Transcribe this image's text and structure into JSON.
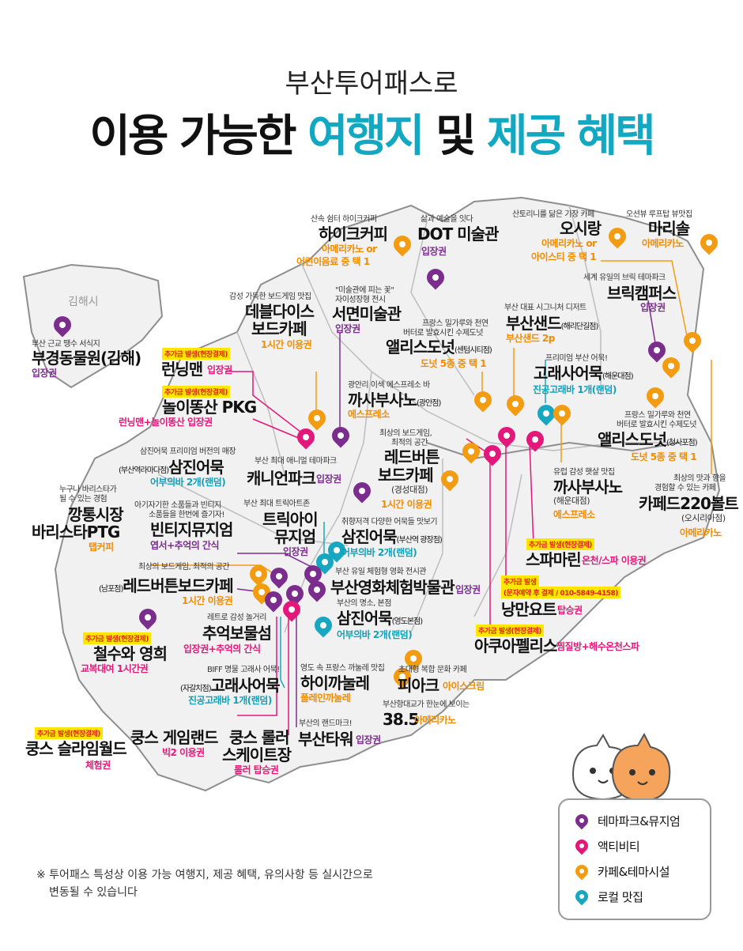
{
  "header": {
    "line1": "부산투어패스로",
    "line2_a": "이용 가능한 ",
    "line2_b": "여행지",
    "line2_c": " 및 ",
    "line2_d": "제공 혜택"
  },
  "colors": {
    "theme_park": "#7b2d8e",
    "activity": "#e3187a",
    "cafe": "#f39c12",
    "local": "#17a7c0"
  },
  "region": "김해시",
  "legend": [
    {
      "icon": "purple-pin-icon",
      "label": "테마파크&뮤지엄"
    },
    {
      "icon": "pink-pin-icon",
      "label": "액티비티"
    },
    {
      "icon": "orange-pin-icon",
      "label": "카페&테마시설"
    },
    {
      "icon": "teal-pin-icon",
      "label": "로컬 맛집"
    }
  ],
  "footnote_1": "※ 투어패스 특성상 이용 가능 여행지, 제공 혜택, 유의사항 등 실시간으로",
  "footnote_2": "변동될 수 있습니다",
  "places": {
    "hike": {
      "sub": "산속 쉼터 하이크커피",
      "name": "하이크커피",
      "b1": "아메리카노 or",
      "b2": "어린이음료 중 택 1"
    },
    "dot": {
      "sub": "삶과 예술을 잇다",
      "name": "DOT 미술관",
      "b1": "입장권"
    },
    "osirang": {
      "sub": "산토리니를 닮은 기장 카페",
      "name": "오시랑",
      "b1": "아메리카노 or",
      "b2": "아이스티 중 택 1"
    },
    "marisol": {
      "sub": "오션뷰 루프탑 뷰맛집",
      "name": "마리솔",
      "b1": "아메리카노"
    },
    "brick": {
      "sub": "세계 유일의 브릭 테마파크",
      "name": "브릭캠퍼스",
      "b1": "입장권"
    },
    "busansand": {
      "sub": "부산 대표 시그니처 디저트",
      "name": "부산샌드",
      "name_small": "(해리단길점)",
      "b1": "부산샌드 2p"
    },
    "gimhae": {
      "sub": "부산 근교 땡수 서식지",
      "name": "부경동물원(김해)",
      "b1": "입장권"
    },
    "dedle": {
      "sub": "감성 가득한 보드게임 맛집",
      "name1": "데블다이스",
      "name2": "보드카페",
      "b1": "1시간 이용권"
    },
    "seomyeon": {
      "sub1": "\"미술관에 피는 꽃\"",
      "sub2": "자이성장형 전시",
      "name": "서면미술관",
      "b1": "입장권"
    },
    "alice1": {
      "sub1": "프랑스 밀가루와 천연",
      "sub2": "버터로 발효시킨 수제도넛",
      "name": "앨리스도넛",
      "name_small": "(센텀시티점)",
      "b1": "도넛 5종 중 택 1"
    },
    "goraesa1": {
      "sub": "프리미엄 부산 어묵!",
      "name": "고래사어묵",
      "name_small": "(해운대점)",
      "b1": "진공고래바 1개(랜덤)"
    },
    "runningman": {
      "tag": "추가금 발생(현장결제)",
      "name": "런닝맨",
      "b1": "입장권"
    },
    "nolttong": {
      "tag": "추가금 발생(현장결제)",
      "name": "놀이똥산 PKG",
      "b1": "런닝맨+놀이똥산 입장권"
    },
    "kkasa1": {
      "sub": "광안리 이색 에스프레소 바",
      "name": "까사부사노",
      "name_small": "(광안점)",
      "b1": "에스프레소"
    },
    "alice2": {
      "sub1": "프랑스 밀가루와 천연",
      "sub2": "버터로 발효시킨 수제도넛",
      "name": "앨리스도넛",
      "name_small": "(청사포점)",
      "b1": "도넛 5종 중 택 1"
    },
    "redbutton1": {
      "sub1": "최상의 보드게임,",
      "sub2": "최적의 공간",
      "name1": "레드버튼",
      "name2": "보드카페",
      "name_small": "(경성대점)",
      "b1": "1시간 이용권"
    },
    "samjin1": {
      "sub": "삼진어묵 프리미엄 버전의 매장",
      "name_small": "(부산역라마다점)",
      "name": "삼진어묵",
      "b1": "어부의바 2개(랜덤)"
    },
    "canyon": {
      "sub": "부산 최대 애니멀 테마파크",
      "name": "캐니언파크",
      "b1": "입장권"
    },
    "kkasa2": {
      "sub": "유럽 감성 햇살 맛집",
      "name": "까사부사노",
      "name_small": "(해운대점)",
      "b1": "에스프레소"
    },
    "cafe220": {
      "sub1": "최상의 맛과 향을",
      "sub2": "경험할 수 있는 카페",
      "name": "카페드220볼트",
      "name_small": "(오시리아점)",
      "b1": "아메리카노"
    },
    "kkangtong": {
      "sub1": "누구나 바리스타가",
      "sub2": "될 수 있는 경험",
      "name1": "깡통시장",
      "name2": "바리스타PTG",
      "b1": "탭커피"
    },
    "vintage": {
      "sub1": "아기자기한 소품들과 빈티지",
      "sub2": "소품들을 한번에 즐기자!",
      "name": "빈티지뮤지엄",
      "b1": "엽서+추억의 간식"
    },
    "trick": {
      "sub": "부산 최대 트릭아트존",
      "name1": "트릭아이",
      "name2": "뮤지엄",
      "b1": "입장권"
    },
    "samjin2": {
      "sub": "취향저격 다양한 어묵들 맛보기",
      "name": "삼진어묵",
      "name_small": "(부산역 광장점)",
      "b1": "어부의바 2개(랜덤)"
    },
    "spamarine": {
      "tag": "추가금 발생(현장결제)",
      "name": "스파마린",
      "b1": "온천/스파 이용권"
    },
    "redbutton2": {
      "sub": "최상의 보드게임, 최적의 공간",
      "name_small": "(남포점)",
      "name": "레드버튼보드카페",
      "b1": "1시간 이용권"
    },
    "movie": {
      "sub": "부산 유일 체험형 영화 전시관",
      "name": "부산영화체험박물관",
      "b1": "입장권"
    },
    "yacht": {
      "tag": "추가금 발생",
      "tag2": "(문자예약 후 결제 / 010-5849-4158)",
      "name": "낭만요트",
      "b1": "탑승권"
    },
    "samjin3": {
      "sub": "부산의 명소, 본점",
      "name": "삼진어묵",
      "name_small": "(영도본점)",
      "b1": "어부의바 2개(랜덤)"
    },
    "chueok": {
      "sub": "레트로 감성 놀거리",
      "name": "추억보물섬",
      "b1": "입장권+추억의 간식"
    },
    "aquapellis": {
      "tag": "추가금 발생(현장결제)",
      "name": "아쿠아펠리스",
      "b1": "찜질방+해수온천스파"
    },
    "cheolsu": {
      "tag": "추가금 발생(현장결제)",
      "name": "철수와 영희",
      "b1": "교복대여 1시간권"
    },
    "goraesa2": {
      "sub": "BIFF 명물 고래사 어묵!",
      "name_small": "(자갈치점)",
      "name": "고래사어묵",
      "b1": "진공고래바 1개(랜덤)"
    },
    "hainkka": {
      "sub": "영도 속 프랑스 까눌레 맛집",
      "name": "하이까눌레",
      "b1": "플레인까눌레"
    },
    "piak": {
      "sub": "초대형 복합 문화 카페",
      "name": "피아크",
      "b1": "아이스크림"
    },
    "c385": {
      "sub": "부산항대교가 한눈에 보이는",
      "name": "38.5",
      "b1": "아메리카노"
    },
    "kungs1": {
      "tag": "추가금 발생(현장결제)",
      "name": "쿵스 슬라임월드",
      "b1": "체험권"
    },
    "kungs2": {
      "name": "쿵스 게임랜드",
      "b1": "빅2 이용권"
    },
    "kungs3": {
      "name1": "쿵스 롤러",
      "name2": "스케이트장",
      "b1": "롤러 탑승권"
    },
    "tower": {
      "sub": "부산의 랜드마크!",
      "name": "부산타워",
      "b1": "입장권"
    }
  }
}
